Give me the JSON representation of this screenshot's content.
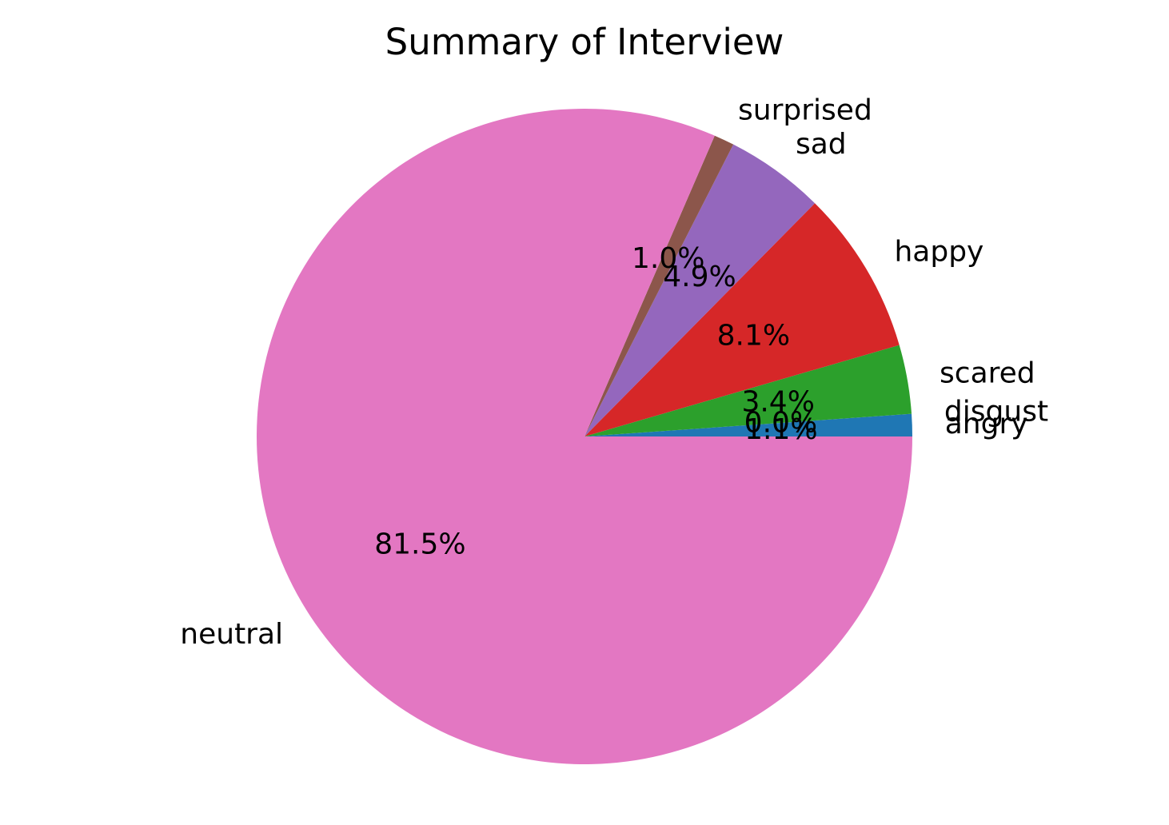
{
  "chart_data": {
    "type": "pie",
    "title": "Summary of Interview",
    "start_angle_deg": 0,
    "direction": "counterclockwise",
    "slices": [
      {
        "label": "angry",
        "value": 1.1,
        "pct_label": "1.1%",
        "color": "#1f77b4"
      },
      {
        "label": "disgust",
        "value": 0.0,
        "pct_label": "0.0%",
        "color": "#ff7f0e"
      },
      {
        "label": "scared",
        "value": 3.4,
        "pct_label": "3.4%",
        "color": "#2ca02c"
      },
      {
        "label": "happy",
        "value": 8.1,
        "pct_label": "8.1%",
        "color": "#d62728"
      },
      {
        "label": "sad",
        "value": 4.9,
        "pct_label": "4.9%",
        "color": "#9467bd"
      },
      {
        "label": "surprised",
        "value": 1.0,
        "pct_label": "1.0%",
        "color": "#8c564b"
      },
      {
        "label": "neutral",
        "value": 81.5,
        "pct_label": "81.5%",
        "color": "#e377c2"
      }
    ]
  }
}
